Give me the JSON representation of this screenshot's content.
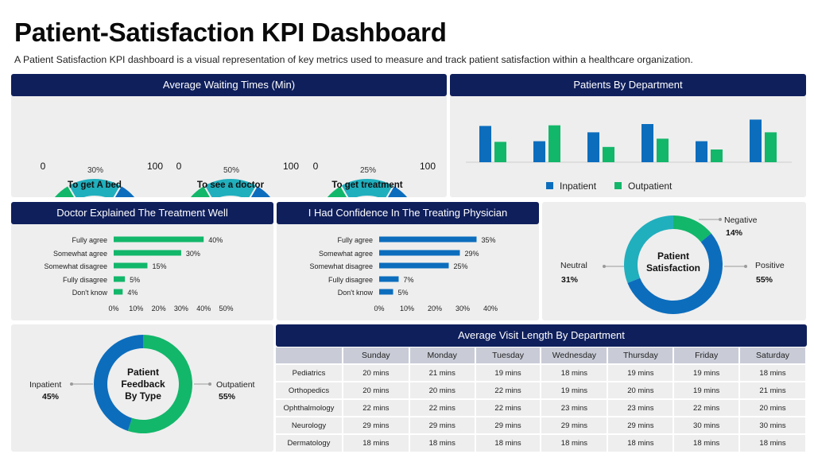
{
  "title": "Patient-Satisfaction KPI Dashboard",
  "subtitle": "A Patient Satisfaction KPI dashboard is a visual representation of key metrics used to measure and track patient satisfaction within a healthcare organization.",
  "colors": {
    "navy": "#0f1f5c",
    "blue": "#0c6dbd",
    "green": "#12b76a",
    "teal": "#20afbd"
  },
  "chart_data": [
    {
      "type": "gauge",
      "title": "Average Waiting Times (Min)",
      "min_label": "0",
      "max_label": "100",
      "gauges": [
        {
          "label": "To get A bed",
          "value": 30,
          "value_label": "30%"
        },
        {
          "label": "To see a doctor",
          "value": 50,
          "value_label": "50%"
        },
        {
          "label": "To get treatment",
          "value": 25,
          "value_label": "25%"
        }
      ]
    },
    {
      "type": "bar",
      "title": "Patients By Department",
      "categories": [
        "",
        "",
        "",
        "",
        "",
        ""
      ],
      "series": [
        {
          "name": "Inpatient",
          "color": "#0c6dbd",
          "values": [
            57,
            33,
            47,
            60,
            33,
            67
          ]
        },
        {
          "name": "Outpatient",
          "color": "#12b76a",
          "values": [
            32,
            58,
            24,
            37,
            20,
            47
          ]
        }
      ],
      "ylim": [
        0,
        75
      ],
      "legend": "bottom"
    },
    {
      "type": "bar",
      "orientation": "horizontal",
      "title": "Doctor Explained The Treatment Well",
      "color": "#12b76a",
      "categories": [
        "Fully agree",
        "Somewhat agree",
        "Somewhat disagree",
        "Fully disagree",
        "Don't know"
      ],
      "values": [
        40,
        30,
        15,
        5,
        4
      ],
      "value_labels": [
        "40%",
        "30%",
        "15%",
        "5%",
        "4%"
      ],
      "xticks": [
        "0%",
        "10%",
        "20%",
        "30%",
        "40%",
        "50%"
      ],
      "xlim": [
        0,
        50
      ]
    },
    {
      "type": "bar",
      "orientation": "horizontal",
      "title": "I Had Confidence In The Treating Physician",
      "color": "#0c6dbd",
      "categories": [
        "Fully agree",
        "Somewhat agree",
        "Somewhat disagree",
        "Fully disagree",
        "Don't know"
      ],
      "values": [
        35,
        29,
        25,
        7,
        5
      ],
      "value_labels": [
        "35%",
        "29%",
        "25%",
        "7%",
        "5%"
      ],
      "xticks": [
        "0%",
        "10%",
        "20%",
        "30%",
        "40%"
      ],
      "xlim": [
        0,
        40
      ]
    },
    {
      "type": "pie",
      "donut": true,
      "center_label": "Patient Satisfaction",
      "slices": [
        {
          "name": "Negative",
          "value": 14,
          "value_label": "14%",
          "color": "#12b76a"
        },
        {
          "name": "Positive",
          "value": 55,
          "value_label": "55%",
          "color": "#0c6dbd"
        },
        {
          "name": "Neutral",
          "value": 31,
          "value_label": "31%",
          "color": "#20afbd"
        }
      ]
    },
    {
      "type": "pie",
      "donut": true,
      "center_label": "Patient Feedback By Type",
      "slices": [
        {
          "name": "Outpatient",
          "value": 55,
          "value_label": "55%",
          "color": "#12b76a"
        },
        {
          "name": "Inpatient",
          "value": 45,
          "value_label": "45%",
          "color": "#0c6dbd"
        }
      ]
    },
    {
      "type": "table",
      "title": "Average Visit Length By Department",
      "columns": [
        "",
        "Sunday",
        "Monday",
        "Tuesday",
        "Wednesday",
        "Thursday",
        "Friday",
        "Saturday"
      ],
      "rows": [
        [
          "Pediatrics",
          "20 mins",
          "21 mins",
          "19 mins",
          "18 mins",
          "19 mins",
          "19 mins",
          "18 mins"
        ],
        [
          "Orthopedics",
          "20 mins",
          "20 mins",
          "22 mins",
          "19  mins",
          "20  mins",
          "19  mins",
          "21  mins"
        ],
        [
          "Ophthalmology",
          "22 mins",
          "22 mins",
          "22 mins",
          "23 mins",
          "23 mins",
          "22 mins",
          "20 mins"
        ],
        [
          "Neurology",
          "29 mins",
          "29 mins",
          "29 mins",
          "29 mins",
          "29 mins",
          "30 mins",
          "30 mins"
        ],
        [
          "Dermatology",
          "18 mins",
          "18 mins",
          "18 mins",
          "18 mins",
          "18 mins",
          "18 mins",
          "18 mins"
        ]
      ]
    }
  ]
}
